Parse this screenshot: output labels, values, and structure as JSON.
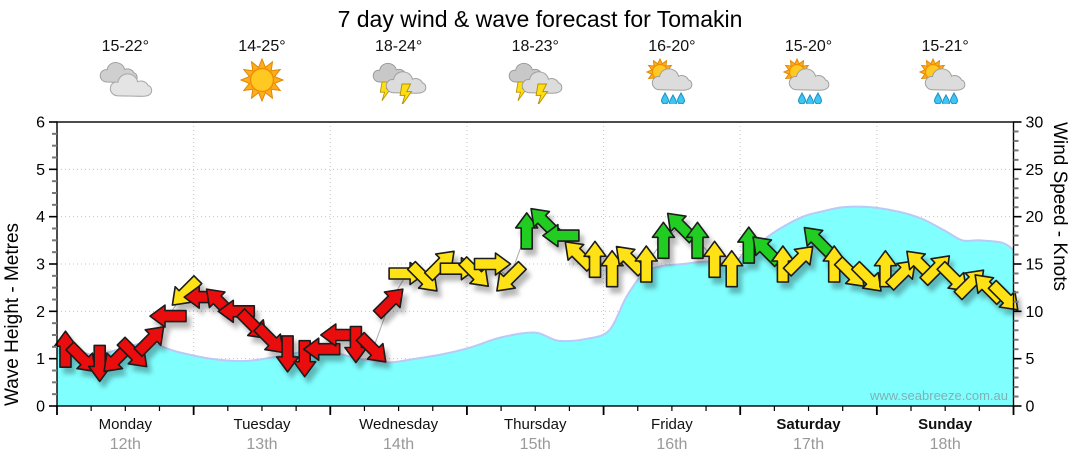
{
  "title": "7 day wind & wave forecast for Tomakin",
  "watermark": "www.seabreeze.com.au",
  "axes": {
    "left_label": "Wave Height - Metres",
    "right_label": "Wind Speed - Knots",
    "wave_ticks": [
      0,
      1,
      2,
      3,
      4,
      5,
      6
    ],
    "wind_ticks": [
      0,
      5,
      10,
      15,
      20,
      25,
      30
    ],
    "wave_max": 6,
    "wind_max": 30
  },
  "days": [
    {
      "name": "Monday",
      "date": "12th",
      "temp": "15-22°",
      "icon": "cloudy",
      "bold": false
    },
    {
      "name": "Tuesday",
      "date": "13th",
      "temp": "14-25°",
      "icon": "sunny",
      "bold": false
    },
    {
      "name": "Wednesday",
      "date": "14th",
      "temp": "18-24°",
      "icon": "storm",
      "bold": false
    },
    {
      "name": "Thursday",
      "date": "15th",
      "temp": "18-23°",
      "icon": "storm",
      "bold": false
    },
    {
      "name": "Friday",
      "date": "16th",
      "temp": "16-20°",
      "icon": "sun-rain",
      "bold": false
    },
    {
      "name": "Saturday",
      "date": "17th",
      "temp": "15-20°",
      "icon": "sun-rain",
      "bold": true
    },
    {
      "name": "Sunday",
      "date": "18th",
      "temp": "15-21°",
      "icon": "sun-rain",
      "bold": true
    }
  ],
  "colors": {
    "wave_fill": "#80FFFF",
    "wave_edge": "#B8CAF6",
    "arrow_red": "#E90D0D",
    "arrow_yellow": "#FFE214",
    "arrow_green": "#23CD23",
    "arrow_outline": "#1A1A1A",
    "grid": "#C4C4C4",
    "date_gray": "#999999",
    "watermark_gray": "#7FA8B0"
  },
  "chart_data": {
    "type": "area",
    "title": "7 day wind & wave forecast for Tomakin",
    "x_unit": "hours (0 = Monday 12th 00:00, 168 = end of Sunday 18th)",
    "x_range": [
      0,
      168
    ],
    "left_axis": {
      "label": "Wave Height - Metres",
      "range": [
        0,
        6
      ],
      "major_tick": 1,
      "minor_tick": 0.25
    },
    "right_axis": {
      "label": "Wind Speed - Knots",
      "range": [
        0,
        30
      ],
      "major_tick": 5,
      "minor_tick": 1
    },
    "grid": "dotted, vertical at day boundaries, horizontal each metre",
    "wave_series": {
      "name": "Wave Height (m)",
      "points": [
        [
          0,
          1.3
        ],
        [
          4,
          1.15
        ],
        [
          7,
          1.08
        ],
        [
          11,
          1.2
        ],
        [
          16,
          1.33
        ],
        [
          21,
          1.15
        ],
        [
          27,
          1.0
        ],
        [
          33,
          0.95
        ],
        [
          39,
          1.05
        ],
        [
          45,
          1.18
        ],
        [
          48,
          1.15
        ],
        [
          53,
          1.0
        ],
        [
          58,
          0.92
        ],
        [
          63,
          1.0
        ],
        [
          68,
          1.1
        ],
        [
          73,
          1.25
        ],
        [
          78,
          1.45
        ],
        [
          84,
          1.55
        ],
        [
          88,
          1.38
        ],
        [
          93,
          1.42
        ],
        [
          97,
          1.6
        ],
        [
          100,
          2.3
        ],
        [
          103,
          2.8
        ],
        [
          106,
          2.95
        ],
        [
          110,
          3.0
        ],
        [
          114,
          3.05
        ],
        [
          118,
          3.0
        ],
        [
          121,
          3.2
        ],
        [
          124,
          3.5
        ],
        [
          127,
          3.75
        ],
        [
          131,
          4.0
        ],
        [
          134,
          4.1
        ],
        [
          138,
          4.2
        ],
        [
          143,
          4.2
        ],
        [
          148,
          4.1
        ],
        [
          152,
          3.95
        ],
        [
          156,
          3.7
        ],
        [
          159,
          3.5
        ],
        [
          162,
          3.5
        ],
        [
          166,
          3.45
        ],
        [
          168,
          3.3
        ]
      ]
    },
    "wind_series": {
      "name": "Wind Speed (knots), 3-hourly arrows",
      "dir_note": "dir = on-screen arrow rotation, degrees clockwise from pointing up; color r=red y=yellow g=green",
      "arrows": [
        [
          1.5,
          6,
          0,
          "r"
        ],
        [
          4.5,
          5,
          135,
          "r"
        ],
        [
          7.5,
          4.5,
          180,
          "r"
        ],
        [
          10.5,
          5,
          225,
          "r"
        ],
        [
          13.5,
          5.5,
          135,
          "r"
        ],
        [
          16.5,
          7,
          45,
          "r"
        ],
        [
          19.5,
          9.5,
          270,
          "r"
        ],
        [
          22.5,
          12,
          225,
          "y"
        ],
        [
          25.5,
          11.5,
          270,
          "r"
        ],
        [
          28.5,
          11,
          315,
          "r"
        ],
        [
          31.5,
          10,
          270,
          "r"
        ],
        [
          34.5,
          8.5,
          135,
          "r"
        ],
        [
          37.5,
          7,
          135,
          "r"
        ],
        [
          40.5,
          5.5,
          180,
          "r"
        ],
        [
          43.5,
          5,
          180,
          "r"
        ],
        [
          46.5,
          6,
          270,
          "r"
        ],
        [
          49.5,
          7.5,
          270,
          "r"
        ],
        [
          52.5,
          6.5,
          180,
          "r"
        ],
        [
          55.5,
          6,
          135,
          "r"
        ],
        [
          58.5,
          11,
          45,
          "r"
        ],
        [
          61.5,
          14,
          90,
          "y"
        ],
        [
          64.5,
          13.5,
          135,
          "y"
        ],
        [
          67.5,
          15,
          45,
          "y"
        ],
        [
          70.5,
          14.5,
          90,
          "y"
        ],
        [
          73.5,
          14,
          135,
          "y"
        ],
        [
          76.5,
          15,
          90,
          "y"
        ],
        [
          79.5,
          13.5,
          225,
          "y"
        ],
        [
          82.5,
          18.5,
          0,
          "g"
        ],
        [
          85.5,
          19.5,
          315,
          "g"
        ],
        [
          88.5,
          18,
          270,
          "g"
        ],
        [
          91.5,
          16,
          315,
          "y"
        ],
        [
          94.5,
          15.5,
          0,
          "y"
        ],
        [
          97.5,
          14.5,
          0,
          "y"
        ],
        [
          100.5,
          15.5,
          315,
          "y"
        ],
        [
          103.5,
          15,
          0,
          "y"
        ],
        [
          106.5,
          17.5,
          0,
          "g"
        ],
        [
          109.5,
          19,
          315,
          "g"
        ],
        [
          112.5,
          17.5,
          0,
          "g"
        ],
        [
          115.5,
          15.5,
          0,
          "y"
        ],
        [
          118.5,
          14.5,
          0,
          "y"
        ],
        [
          121.5,
          17,
          0,
          "g"
        ],
        [
          124.5,
          16.5,
          315,
          "g"
        ],
        [
          127.5,
          15,
          0,
          "y"
        ],
        [
          130.5,
          15.5,
          45,
          "y"
        ],
        [
          133.5,
          17.5,
          315,
          "g"
        ],
        [
          136.5,
          15,
          0,
          "y"
        ],
        [
          139.5,
          14,
          135,
          "y"
        ],
        [
          142.5,
          13.5,
          135,
          "y"
        ],
        [
          145.5,
          14.5,
          0,
          "y"
        ],
        [
          148.5,
          14,
          45,
          "y"
        ],
        [
          151.5,
          15,
          315,
          "y"
        ],
        [
          154.5,
          14.5,
          45,
          "y"
        ],
        [
          157.5,
          13.5,
          135,
          "y"
        ],
        [
          160.5,
          13,
          45,
          "y"
        ],
        [
          163.5,
          12.5,
          315,
          "y"
        ],
        [
          166.5,
          11.5,
          135,
          "y"
        ]
      ]
    }
  }
}
